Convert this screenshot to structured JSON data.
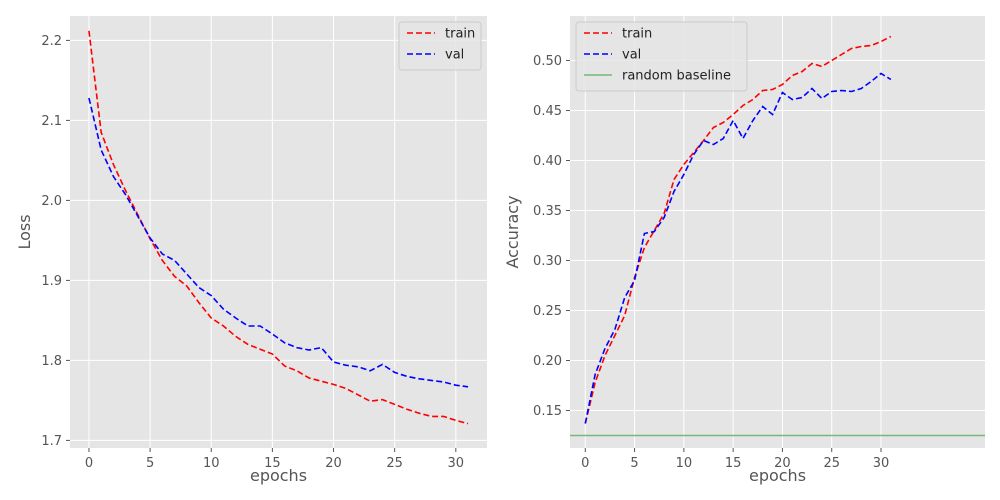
{
  "chart_data": [
    {
      "type": "line",
      "xlabel": "epochs",
      "ylabel": "Loss",
      "xlim": [
        -1.55,
        32.55
      ],
      "ylim": [
        1.6905,
        2.2305
      ],
      "xticks": [
        0,
        5,
        10,
        15,
        20,
        25,
        30
      ],
      "xtick_labels": [
        "0",
        "5",
        "10",
        "15",
        "20",
        "25",
        "30"
      ],
      "yticks": [
        1.7,
        1.8,
        1.9,
        2.0,
        2.1,
        2.2
      ],
      "ytick_labels": [
        "1.7",
        "1.8",
        "1.9",
        "2.0",
        "2.1",
        "2.2"
      ],
      "grid": true,
      "legend_position": "top-right",
      "x": [
        0,
        1,
        2,
        3,
        4,
        5,
        6,
        7,
        8,
        9,
        10,
        11,
        12,
        13,
        14,
        15,
        16,
        17,
        18,
        19,
        20,
        21,
        22,
        23,
        24,
        25,
        26,
        27,
        28,
        29,
        30,
        31
      ],
      "series": [
        {
          "name": "train",
          "color": "#ff0000",
          "dash": "dashed",
          "values": [
            2.212,
            2.085,
            2.045,
            2.012,
            1.982,
            1.952,
            1.925,
            1.905,
            1.893,
            1.872,
            1.853,
            1.843,
            1.83,
            1.82,
            1.814,
            1.808,
            1.793,
            1.787,
            1.778,
            1.774,
            1.77,
            1.765,
            1.757,
            1.749,
            1.751,
            1.745,
            1.739,
            1.734,
            1.73,
            1.73,
            1.725,
            1.721
          ]
        },
        {
          "name": "val",
          "color": "#0000ff",
          "dash": "dashed",
          "values": [
            2.128,
            2.063,
            2.03,
            2.007,
            1.98,
            1.953,
            1.933,
            1.925,
            1.908,
            1.891,
            1.881,
            1.864,
            1.853,
            1.843,
            1.843,
            1.833,
            1.822,
            1.816,
            1.813,
            1.816,
            1.798,
            1.794,
            1.792,
            1.787,
            1.795,
            1.785,
            1.78,
            1.777,
            1.775,
            1.773,
            1.769,
            1.767
          ]
        }
      ]
    },
    {
      "type": "line",
      "xlabel": "epochs",
      "ylabel": "Accuracy",
      "xlim": [
        -1.55,
        40.55
      ],
      "ylim": [
        0.1125,
        0.5445
      ],
      "xticks": [
        0,
        5,
        10,
        15,
        20,
        25,
        30
      ],
      "xtick_labels": [
        "0",
        "5",
        "10",
        "15",
        "20",
        "25",
        "30"
      ],
      "yticks": [
        0.15,
        0.2,
        0.25,
        0.3,
        0.35,
        0.4,
        0.45,
        0.5
      ],
      "ytick_labels": [
        "0.15",
        "0.20",
        "0.25",
        "0.30",
        "0.35",
        "0.40",
        "0.45",
        "0.50"
      ],
      "grid": true,
      "legend_position": "top-left",
      "x": [
        0,
        1,
        2,
        3,
        4,
        5,
        6,
        7,
        8,
        9,
        10,
        11,
        12,
        13,
        14,
        15,
        16,
        17,
        18,
        19,
        20,
        21,
        22,
        23,
        24,
        25,
        26,
        27,
        28,
        29,
        30,
        31
      ],
      "series": [
        {
          "name": "train",
          "color": "#ff0000",
          "dash": "dashed",
          "values": [
            0.137,
            0.178,
            0.205,
            0.225,
            0.245,
            0.283,
            0.313,
            0.33,
            0.347,
            0.381,
            0.396,
            0.408,
            0.42,
            0.433,
            0.438,
            0.446,
            0.455,
            0.461,
            0.47,
            0.471,
            0.476,
            0.485,
            0.489,
            0.497,
            0.494,
            0.5,
            0.506,
            0.512,
            0.514,
            0.515,
            0.519,
            0.524
          ]
        },
        {
          "name": "val",
          "color": "#0000ff",
          "dash": "dashed",
          "values": [
            0.137,
            0.186,
            0.212,
            0.231,
            0.263,
            0.28,
            0.327,
            0.329,
            0.343,
            0.369,
            0.386,
            0.406,
            0.42,
            0.416,
            0.422,
            0.44,
            0.422,
            0.44,
            0.454,
            0.446,
            0.468,
            0.461,
            0.463,
            0.472,
            0.462,
            0.469,
            0.47,
            0.469,
            0.472,
            0.479,
            0.487,
            0.481
          ]
        },
        {
          "name": "random baseline",
          "color": "#77b977",
          "dash": "solid",
          "x": [
            -1.55,
            40.55
          ],
          "values": [
            0.125,
            0.125
          ]
        }
      ]
    }
  ]
}
